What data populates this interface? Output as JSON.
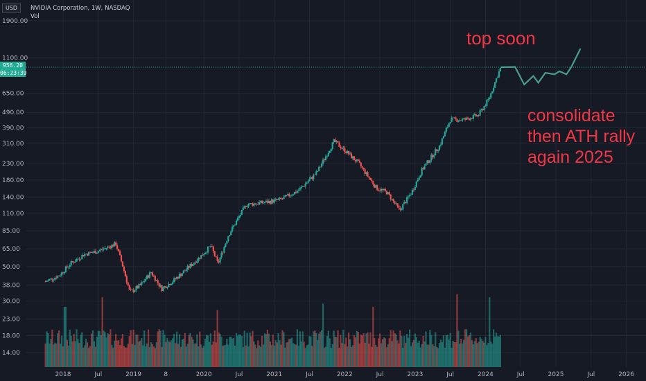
{
  "header": {
    "symbol": "NVIDIA Corporation, 1W, NASDAQ",
    "volume_label": "Vol",
    "currency": "USD"
  },
  "current": {
    "price": "956.20",
    "countdown": "06:23:39"
  },
  "annotations": {
    "top": "top soon",
    "forecast_line1": "consolidate",
    "forecast_line2": "then ATH rally",
    "forecast_line3": "again 2025"
  },
  "colors": {
    "background": "#161a25",
    "up": "#26a69a",
    "down": "#ef5350",
    "projection": "#4a9e8c",
    "annotation": "#f23645",
    "price_tag": "#22ab94"
  },
  "chart_data": {
    "type": "candlestick",
    "scale": "log",
    "grid": true,
    "y_ticks": [
      "1900.00",
      "1100.00",
      "650.00",
      "490.00",
      "390.00",
      "310.00",
      "230.00",
      "180.00",
      "140.00",
      "110.00",
      "85.00",
      "65.00",
      "50.00",
      "38.00",
      "30.00",
      "23.00",
      "18.00",
      "14.00"
    ],
    "x_ticks": [
      "2018",
      "Jul",
      "2019",
      "8",
      "2020",
      "Jul",
      "2021",
      "Jul",
      "2022",
      "Jul",
      "2023",
      "Jul",
      "2024",
      "Jul",
      "2025",
      "Jul",
      "2026"
    ],
    "price_path": [
      {
        "t": 2017.75,
        "close": 40
      },
      {
        "t": 2017.95,
        "close": 44
      },
      {
        "t": 2018.1,
        "close": 52
      },
      {
        "t": 2018.3,
        "close": 60
      },
      {
        "t": 2018.5,
        "close": 63
      },
      {
        "t": 2018.75,
        "close": 70
      },
      {
        "t": 2018.85,
        "close": 50
      },
      {
        "t": 2018.95,
        "close": 34
      },
      {
        "t": 2019.1,
        "close": 38
      },
      {
        "t": 2019.25,
        "close": 46
      },
      {
        "t": 2019.4,
        "close": 36
      },
      {
        "t": 2019.55,
        "close": 40
      },
      {
        "t": 2019.75,
        "close": 48
      },
      {
        "t": 2019.95,
        "close": 58
      },
      {
        "t": 2020.1,
        "close": 68
      },
      {
        "t": 2020.2,
        "close": 52
      },
      {
        "t": 2020.35,
        "close": 80
      },
      {
        "t": 2020.6,
        "close": 125
      },
      {
        "t": 2020.9,
        "close": 130
      },
      {
        "t": 2021.1,
        "close": 135
      },
      {
        "t": 2021.35,
        "close": 155
      },
      {
        "t": 2021.6,
        "close": 200
      },
      {
        "t": 2021.85,
        "close": 320
      },
      {
        "t": 2022.0,
        "close": 280
      },
      {
        "t": 2022.2,
        "close": 230
      },
      {
        "t": 2022.45,
        "close": 160
      },
      {
        "t": 2022.6,
        "close": 150
      },
      {
        "t": 2022.78,
        "close": 115
      },
      {
        "t": 2022.95,
        "close": 150
      },
      {
        "t": 2023.1,
        "close": 210
      },
      {
        "t": 2023.35,
        "close": 300
      },
      {
        "t": 2023.5,
        "close": 440
      },
      {
        "t": 2023.7,
        "close": 440
      },
      {
        "t": 2023.9,
        "close": 470
      },
      {
        "t": 2024.05,
        "close": 600
      },
      {
        "t": 2024.15,
        "close": 800
      },
      {
        "t": 2024.22,
        "close": 956
      }
    ],
    "projection_path": [
      {
        "t": 2024.22,
        "close": 956
      },
      {
        "t": 2024.42,
        "close": 960
      },
      {
        "t": 2024.55,
        "close": 740
      },
      {
        "t": 2024.68,
        "close": 840
      },
      {
        "t": 2024.75,
        "close": 760
      },
      {
        "t": 2024.85,
        "close": 880
      },
      {
        "t": 2024.98,
        "close": 860
      },
      {
        "t": 2025.05,
        "close": 900
      },
      {
        "t": 2025.15,
        "close": 860
      },
      {
        "t": 2025.22,
        "close": 960
      },
      {
        "t": 2025.35,
        "close": 1260
      }
    ],
    "volume": {
      "scale_max": 120,
      "spikes": [
        {
          "t": 2018.03,
          "v": 95
        },
        {
          "t": 2018.55,
          "v": 110
        },
        {
          "t": 2020.2,
          "v": 90
        },
        {
          "t": 2021.7,
          "v": 100
        },
        {
          "t": 2022.4,
          "v": 95
        },
        {
          "t": 2023.6,
          "v": 115
        },
        {
          "t": 2024.05,
          "v": 110
        }
      ]
    }
  }
}
